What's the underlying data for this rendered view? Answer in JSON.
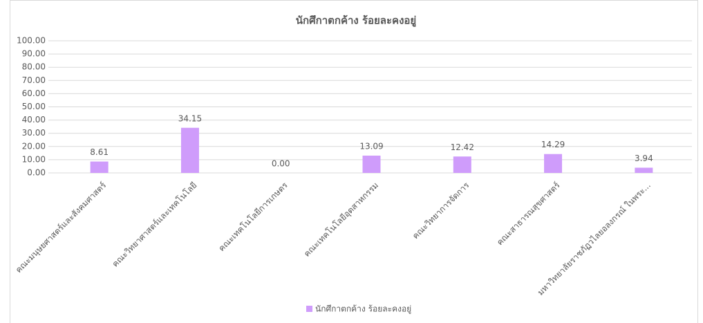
{
  "chart_data": {
    "type": "bar",
    "title": "นักศึกาตกค้าง ร้อยละคงอยู่",
    "categories": [
      "คณะมนุษยศาสตร์และสังคมศาสตร์",
      "คณะวิทยาศาสตร์และเทคโนโลยี",
      "คณะเทคโนโลยีการเกษตร",
      "คณะเทคโนโลยีอุตสาหกรรม",
      "คณะวิทยาการจัดการ",
      "คณะสาธารณสุขศาสตร์",
      "มหาวิทยาลัยราชภัฏวไลยอลงกรณ์ ในพระ..."
    ],
    "series": [
      {
        "name": "นักศึกาตกค้าง ร้อยละคงอยู่",
        "color": "#cf9cfb",
        "values": [
          8.61,
          34.15,
          0,
          13.09,
          12.42,
          14.29,
          3.94
        ],
        "value_labels": [
          "8.61",
          "34.15",
          "0.00",
          "13.09",
          "12.42",
          "14.29",
          "3.94"
        ]
      }
    ],
    "ylim": [
      0,
      100
    ],
    "yticks": [
      {
        "value": 0,
        "label": "0.00"
      },
      {
        "value": 10,
        "label": "10.00"
      },
      {
        "value": 20,
        "label": "20.00"
      },
      {
        "value": 30,
        "label": "30.00"
      },
      {
        "value": 40,
        "label": "40.00"
      },
      {
        "value": 50,
        "label": "50.00"
      },
      {
        "value": 60,
        "label": "60.00"
      },
      {
        "value": 70,
        "label": "70.00"
      },
      {
        "value": 80,
        "label": "80.00"
      },
      {
        "value": 90,
        "label": "90.00"
      },
      {
        "value": 100,
        "label": "100.00"
      }
    ],
    "grid": true,
    "legend": "bottom"
  }
}
